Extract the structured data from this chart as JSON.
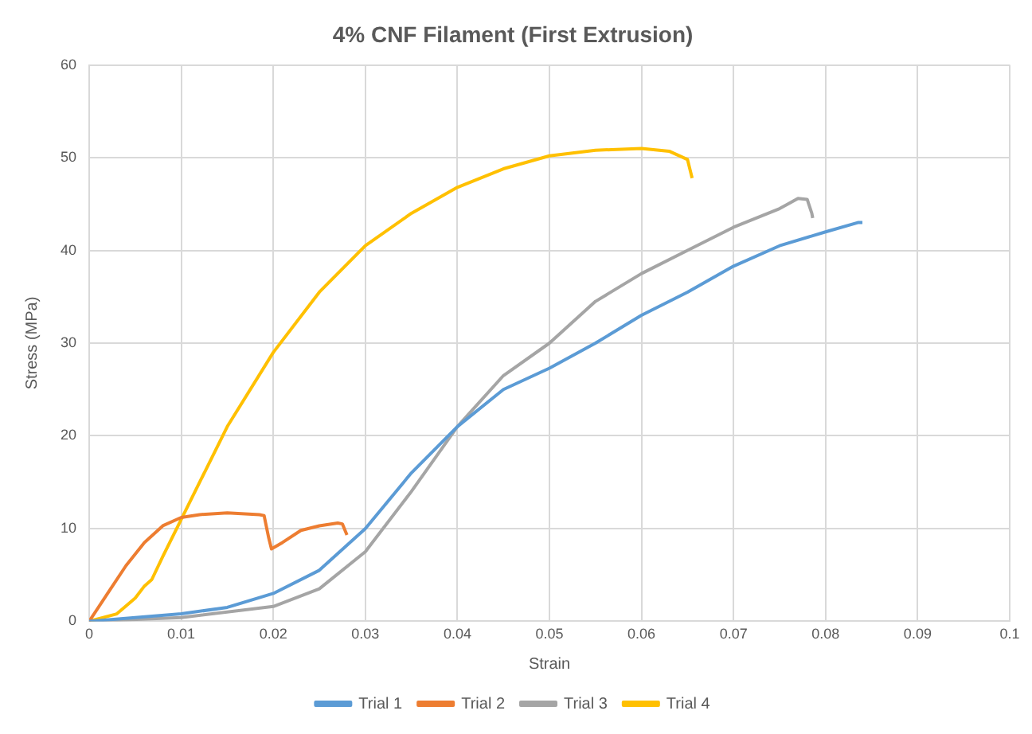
{
  "chart_data": {
    "type": "line",
    "title": "4% CNF Filament (First Extrusion)",
    "xlabel": "Strain",
    "ylabel": "Stress (MPa)",
    "xlim": [
      0,
      0.1
    ],
    "xticks": [
      0,
      0.01,
      0.02,
      0.03,
      0.04,
      0.05,
      0.06,
      0.07,
      0.08,
      0.09,
      0.1
    ],
    "ylim": [
      0,
      60
    ],
    "yticks": [
      0,
      10,
      20,
      30,
      40,
      50,
      60
    ],
    "grid": true,
    "legend": "bottom",
    "marker": "none",
    "line_style": "solid",
    "series": [
      {
        "name": "Trial 1",
        "color": "#5b9bd5",
        "x": [
          0,
          0.01,
          0.015,
          0.02,
          0.025,
          0.03,
          0.035,
          0.04,
          0.045,
          0.05,
          0.055,
          0.06,
          0.065,
          0.07,
          0.075,
          0.08,
          0.0835,
          0.084
        ],
        "values": [
          0,
          0.8,
          1.5,
          3,
          5.5,
          10,
          16,
          21,
          25,
          27.3,
          30,
          33,
          35.5,
          38.3,
          40.5,
          42,
          43,
          43
        ]
      },
      {
        "name": "Trial 2",
        "color": "#ed7d31",
        "x": [
          0,
          0.002,
          0.004,
          0.006,
          0.008,
          0.01,
          0.012,
          0.015,
          0.0185,
          0.019,
          0.0195,
          0.0198,
          0.021,
          0.023,
          0.025,
          0.027,
          0.0275,
          0.028
        ],
        "values": [
          0,
          3,
          6,
          8.5,
          10.3,
          11.2,
          11.5,
          11.7,
          11.5,
          11.4,
          9,
          7.8,
          8.5,
          9.8,
          10.3,
          10.6,
          10.5,
          9.3
        ]
      },
      {
        "name": "Trial 3",
        "color": "#a5a5a5",
        "x": [
          0,
          0.01,
          0.02,
          0.025,
          0.03,
          0.035,
          0.04,
          0.045,
          0.05,
          0.055,
          0.06,
          0.065,
          0.07,
          0.075,
          0.077,
          0.078,
          0.0785,
          0.0786
        ],
        "values": [
          0,
          0.4,
          1.6,
          3.5,
          7.5,
          14,
          21,
          26.5,
          30,
          34.5,
          37.5,
          40,
          42.5,
          44.5,
          45.6,
          45.5,
          44,
          43.5
        ]
      },
      {
        "name": "Trial 4",
        "color": "#ffc000",
        "x": [
          0,
          0.003,
          0.005,
          0.006,
          0.0068,
          0.008,
          0.01,
          0.015,
          0.02,
          0.025,
          0.03,
          0.035,
          0.04,
          0.045,
          0.05,
          0.055,
          0.06,
          0.063,
          0.065,
          0.0655
        ],
        "values": [
          0,
          0.8,
          2.5,
          3.8,
          4.5,
          7,
          11,
          21,
          29,
          35.5,
          40.5,
          44,
          46.8,
          48.8,
          50.2,
          50.8,
          51,
          50.7,
          49.8,
          47.8
        ]
      }
    ]
  }
}
